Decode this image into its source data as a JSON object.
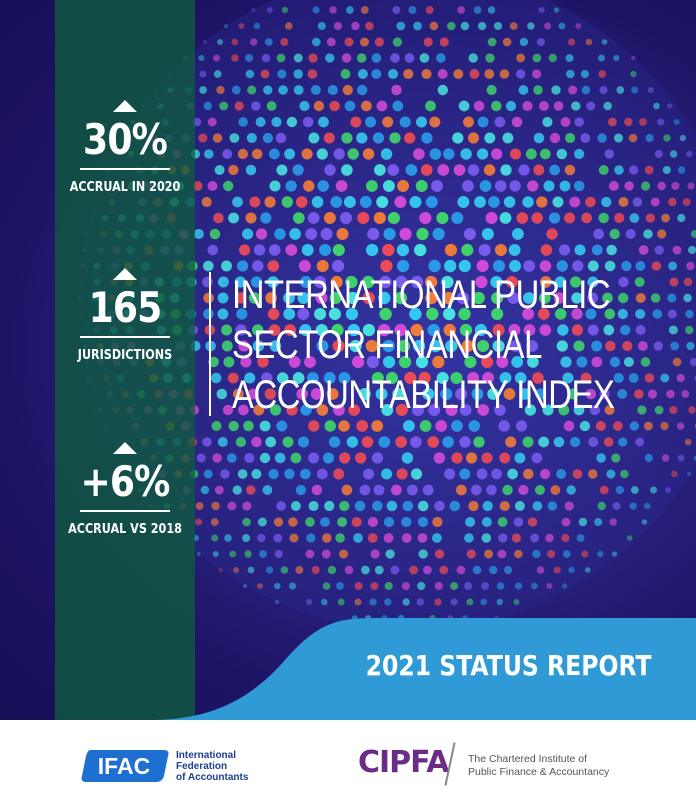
{
  "stats": [
    {
      "value": "30%",
      "label": "ACCRUAL IN 2020"
    },
    {
      "value": "165",
      "label": "JURISDICTIONS"
    },
    {
      "value": "+6%",
      "label": "ACCRUAL VS 2018"
    }
  ],
  "title_lines": [
    "INTERNATIONAL PUBLIC",
    "SECTOR FINANCIAL",
    "ACCOUNTABILITY INDEX"
  ],
  "report_label": "2021 STATUS REPORT",
  "ifac": {
    "logo_text": "IFAC",
    "name_lines": [
      "International",
      "Federation",
      "of Accountants"
    ]
  },
  "cipfa": {
    "logo_text": "CIPFA",
    "name_lines": [
      "The Chartered Institute of",
      "Public Finance & Accountancy"
    ]
  },
  "colors": {
    "background": "#1e1466",
    "stats_strip": "#0e5c3e",
    "banner": "#2f9ad6",
    "ifac_blue": "#1d6fd1",
    "cipfa_purple": "#6a2c86"
  },
  "dot_palette": [
    "#35c8ee",
    "#2a9be8",
    "#ef4b55",
    "#f07b3a",
    "#3fd46b",
    "#d24bd8",
    "#7a5cf0",
    "#48e3e0"
  ]
}
